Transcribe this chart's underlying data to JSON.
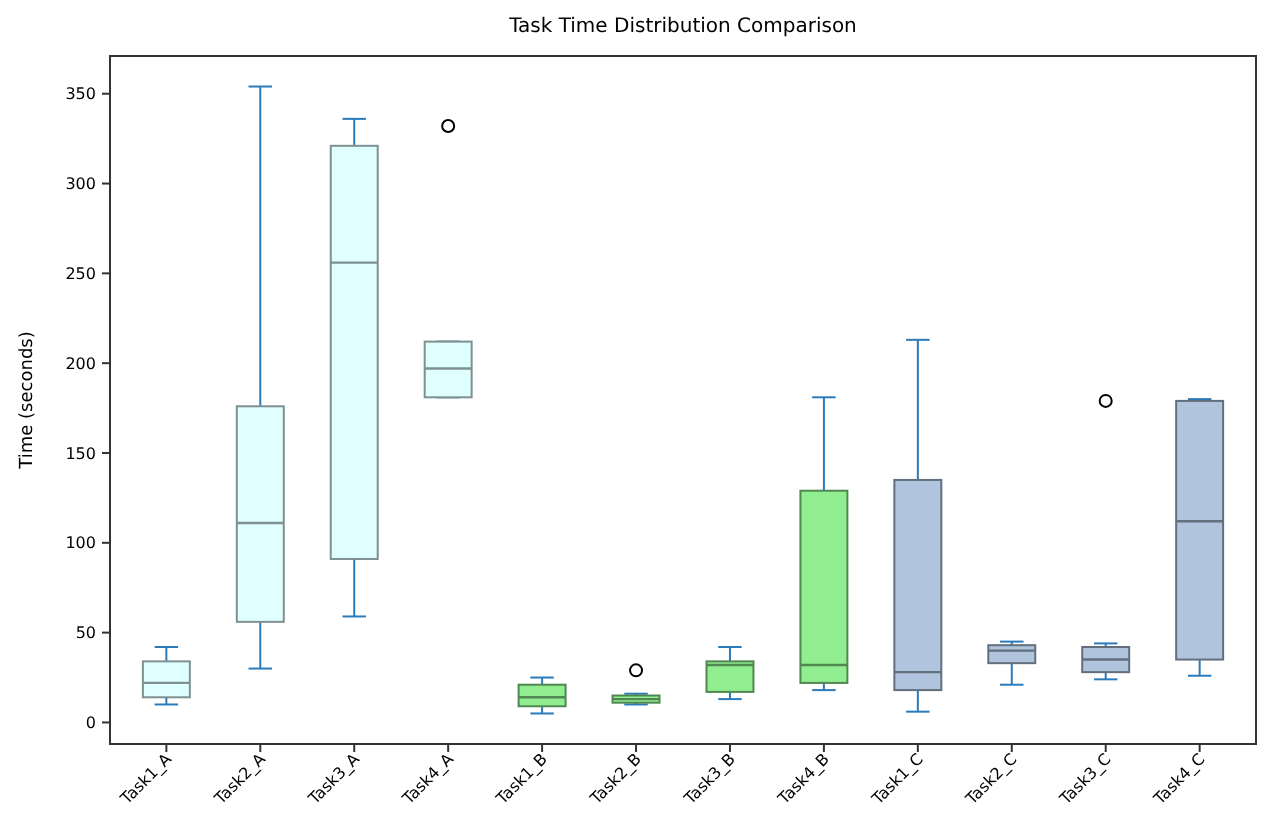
{
  "chart_data": {
    "type": "box",
    "title": "Task Time Distribution Comparison",
    "ylabel": "Time (seconds)",
    "categories": [
      "Task1_A",
      "Task2_A",
      "Task3_A",
      "Task4_A",
      "Task1_B",
      "Task2_B",
      "Task3_B",
      "Task4_B",
      "Task1_C",
      "Task2_C",
      "Task3_C",
      "Task4_C"
    ],
    "colors": [
      "#e0ffff",
      "#e0ffff",
      "#e0ffff",
      "#e0ffff",
      "#90ee90",
      "#90ee90",
      "#90ee90",
      "#90ee90",
      "#b0c4de",
      "#b0c4de",
      "#b0c4de",
      "#b0c4de"
    ],
    "boxes": [
      {
        "low": 10,
        "q1": 14,
        "median": 22,
        "q3": 34,
        "high": 42
      },
      {
        "low": 30,
        "q1": 56,
        "median": 111,
        "q3": 176,
        "high": 354
      },
      {
        "low": 59,
        "q1": 91,
        "median": 256,
        "q3": 321,
        "high": 336
      },
      {
        "low": 181,
        "q1": 181,
        "median": 197,
        "q3": 212,
        "high": 212,
        "outliers": [
          332
        ]
      },
      {
        "low": 5,
        "q1": 9,
        "median": 14,
        "q3": 21,
        "high": 25
      },
      {
        "low": 10,
        "q1": 11,
        "median": 13,
        "q3": 15,
        "high": 16,
        "outliers": [
          29
        ]
      },
      {
        "low": 13,
        "q1": 17,
        "median": 32,
        "q3": 34,
        "high": 42
      },
      {
        "low": 18,
        "q1": 22,
        "median": 32,
        "q3": 129,
        "high": 181
      },
      {
        "low": 6,
        "q1": 18,
        "median": 28,
        "q3": 135,
        "high": 213
      },
      {
        "low": 21,
        "q1": 33,
        "median": 40,
        "q3": 43,
        "high": 45
      },
      {
        "low": 24,
        "q1": 28,
        "median": 35,
        "q3": 42,
        "high": 44,
        "outliers": [
          179
        ]
      },
      {
        "low": 26,
        "q1": 35,
        "median": 112,
        "q3": 179,
        "high": 180
      }
    ],
    "ylim": [
      -12,
      371
    ],
    "yticks": [
      0,
      50,
      100,
      150,
      200,
      250,
      300,
      350
    ],
    "grid": false
  }
}
